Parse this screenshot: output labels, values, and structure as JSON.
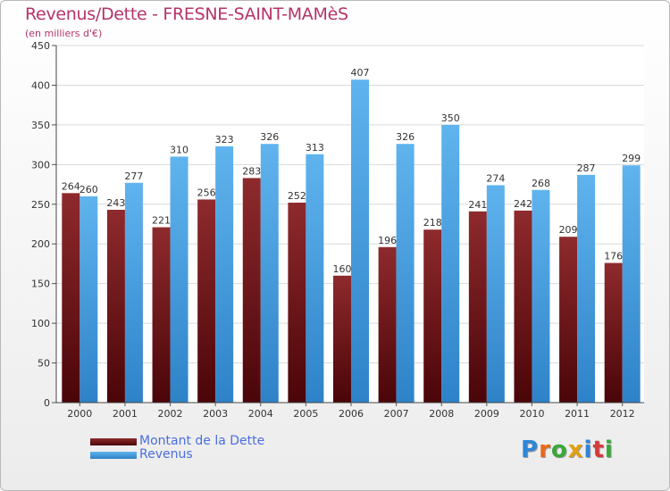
{
  "chart_data": {
    "type": "bar",
    "title": "Revenus/Dette - FRESNE-SAINT-MAMèS",
    "subtitle": "(en milliers d'€)",
    "categories": [
      "2000",
      "2001",
      "2002",
      "2003",
      "2004",
      "2005",
      "2006",
      "2007",
      "2008",
      "2009",
      "2010",
      "2011",
      "2012"
    ],
    "series": [
      {
        "name": "Montant de la Dette",
        "color": "#6b0f12",
        "values": [
          264,
          243,
          221,
          256,
          283,
          252,
          160,
          196,
          218,
          241,
          242,
          209,
          176
        ]
      },
      {
        "name": "Revenus",
        "color": "#3d9de0",
        "values": [
          260,
          277,
          310,
          323,
          326,
          313,
          407,
          326,
          350,
          274,
          268,
          287,
          299
        ]
      }
    ],
    "ylim": [
      0,
      450
    ],
    "yticks": [
      0,
      50,
      100,
      150,
      200,
      250,
      300,
      350,
      400,
      450
    ],
    "grid": true,
    "legend_position": "bottom-left"
  },
  "logo": {
    "text": "Proxiti",
    "letter_colors": [
      "#2e86d6",
      "#e86a1a",
      "#3aa83a",
      "#e0a010",
      "#2e86d6",
      "#d63a3a",
      "#3aa83a"
    ]
  }
}
